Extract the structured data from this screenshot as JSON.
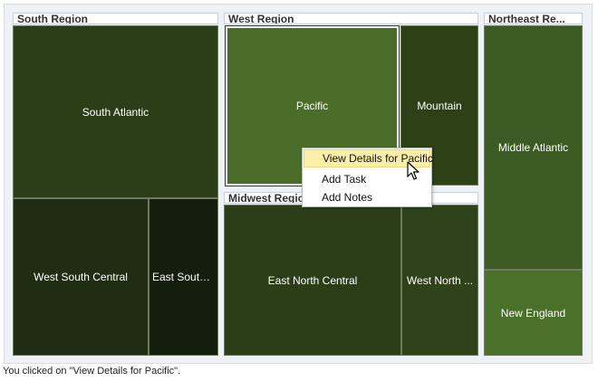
{
  "treemap": {
    "groups": {
      "south": {
        "label": "South Region"
      },
      "west": {
        "label": "West Region"
      },
      "midwest": {
        "label": "Midwest Regio"
      },
      "northeast": {
        "label": "Northeast Re..."
      }
    },
    "nodes": {
      "south_atlantic": {
        "label": "South Atlantic",
        "color": "#2c3e17"
      },
      "west_south_central": {
        "label": "West South Central",
        "color": "#1f2d13"
      },
      "east_south_central": {
        "label": "East South ...",
        "color": "#131e0c"
      },
      "pacific": {
        "label": "Pacific",
        "color": "#4a6e2a",
        "selected": true
      },
      "mountain": {
        "label": "Mountain",
        "color": "#2d4016"
      },
      "east_north_central": {
        "label": "East North Central",
        "color": "#2c3e17"
      },
      "west_north_central": {
        "label": "West North ...",
        "color": "#2e4319"
      },
      "middle_atlantic": {
        "label": "Middle Atlantic",
        "color": "#3c5b22"
      },
      "new_england": {
        "label": "New England",
        "color": "#4a7029"
      }
    }
  },
  "context_menu": {
    "items": [
      {
        "label": "View Details for Pacific",
        "highlighted": true
      },
      {
        "label": "Add Task"
      },
      {
        "label": "Add Notes"
      }
    ]
  },
  "status": {
    "message": "You clicked on \"View Details for Pacific\"."
  },
  "colors": {
    "menu_highlight": "#fbeea7",
    "frame_bg": "#eef2f6"
  },
  "icons": {
    "cursor": "mouse-pointer-icon"
  }
}
